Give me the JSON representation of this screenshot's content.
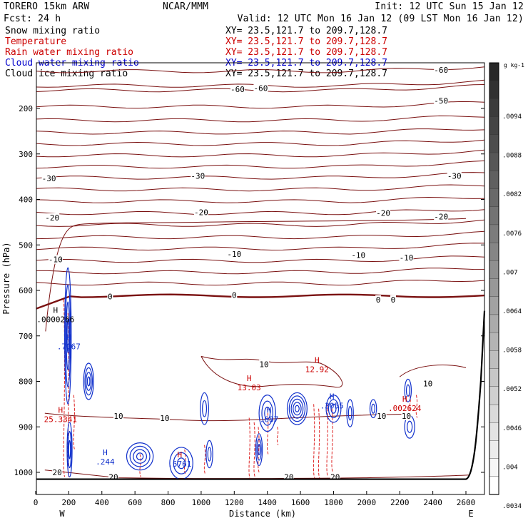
{
  "header": {
    "model": "TORERO  15km ARW",
    "center": "NCAR/MMM",
    "init": "Init: 12 UTC Sun 15 Jan 12",
    "fcst": "Fcst:   24 h",
    "valid": "Valid: 12 UTC Mon 16 Jan 12 (09 LST Mon 16 Jan 12)"
  },
  "fields": [
    {
      "label": "Snow mixing ratio",
      "color": "#000000",
      "xy": "XY=  23.5,121.7 to 209.7,128.7",
      "xy_color": "#000000"
    },
    {
      "label": "Temperature",
      "color": "#cc0000",
      "xy": "XY=  23.5,121.7 to 209.7,128.7",
      "xy_color": "#cc0000"
    },
    {
      "label": "Rain water mixing ratio",
      "color": "#cc0000",
      "xy": "XY=  23.5,121.7 to 209.7,128.7",
      "xy_color": "#cc0000"
    },
    {
      "label": "Cloud water mixing ratio",
      "color": "#0000cc",
      "xy": "XY=  23.5,121.7 to 209.7,128.7",
      "xy_color": "#0000cc"
    },
    {
      "label": "Cloud ice mixing ratio",
      "color": "#000000",
      "xy": "XY=  23.5,121.7 to 209.7,128.7",
      "xy_color": "#000000"
    }
  ],
  "colorbar": {
    "unit": "g kg-1",
    "labels": [
      ".0094",
      ".0088",
      ".0082",
      ".0076",
      ".007",
      ".0064",
      ".0058",
      ".0052",
      ".0046",
      ".004",
      ".0034"
    ]
  },
  "chart_data": {
    "type": "contour",
    "xlabel": "Distance (km)",
    "ylabel": "Pressure (hPa)",
    "xlim": [
      0,
      2800
    ],
    "ylim": [
      1050,
      100
    ],
    "x_ticks": [
      0,
      200,
      400,
      600,
      800,
      1000,
      1200,
      1400,
      1600,
      1800,
      2000,
      2200,
      2400,
      2600
    ],
    "y_ticks": [
      200,
      300,
      400,
      500,
      600,
      700,
      800,
      900,
      1000
    ],
    "x_end_labels": {
      "left": "W",
      "right": "E"
    },
    "colors": {
      "temperature": "#7a1010",
      "rain": "#dd2222",
      "cloud": "#1030cc",
      "terrain": "#000000"
    },
    "temperature_labels": [
      {
        "x": 2450,
        "p": 115,
        "text": "-60"
      },
      {
        "x": 1220,
        "p": 158,
        "text": "-60"
      },
      {
        "x": 1360,
        "p": 155,
        "text": "-60"
      },
      {
        "x": 2450,
        "p": 183,
        "text": "-50"
      },
      {
        "x": 80,
        "p": 354,
        "text": "-30"
      },
      {
        "x": 980,
        "p": 348,
        "text": "-30"
      },
      {
        "x": 2530,
        "p": 348,
        "text": "-30"
      },
      {
        "x": 100,
        "p": 440,
        "text": "-20"
      },
      {
        "x": 1000,
        "p": 428,
        "text": "-20"
      },
      {
        "x": 2100,
        "p": 430,
        "text": "-20"
      },
      {
        "x": 2450,
        "p": 438,
        "text": "-20"
      },
      {
        "x": 120,
        "p": 532,
        "text": "-10"
      },
      {
        "x": 1200,
        "p": 520,
        "text": "-10"
      },
      {
        "x": 1950,
        "p": 522,
        "text": "-10"
      },
      {
        "x": 2240,
        "p": 528,
        "text": "-10"
      },
      {
        "x": 450,
        "p": 613,
        "text": "0"
      },
      {
        "x": 1200,
        "p": 610,
        "text": "0"
      },
      {
        "x": 2070,
        "p": 620,
        "text": "0"
      },
      {
        "x": 2160,
        "p": 620,
        "text": "0"
      },
      {
        "x": 1380,
        "p": 762,
        "text": "10"
      },
      {
        "x": 2370,
        "p": 805,
        "text": "10"
      },
      {
        "x": 500,
        "p": 876,
        "text": "10"
      },
      {
        "x": 780,
        "p": 881,
        "text": "10"
      },
      {
        "x": 2090,
        "p": 876,
        "text": "10"
      },
      {
        "x": 2240,
        "p": 876,
        "text": "10"
      },
      {
        "x": 130,
        "p": 1000,
        "text": "20"
      },
      {
        "x": 470,
        "p": 1010,
        "text": "20"
      },
      {
        "x": 1530,
        "p": 1010,
        "text": "20"
      },
      {
        "x": 1810,
        "p": 1010,
        "text": "20"
      }
    ],
    "extrema": [
      {
        "x": 120,
        "p": 665,
        "text": ".0000266",
        "h_color": "#000000",
        "color": "#000000"
      },
      {
        "x": 200,
        "p": 725,
        "text": ".7067",
        "h_color": "#1030cc",
        "color": "#1030cc"
      },
      {
        "x": 150,
        "p": 885,
        "text": "25.3341",
        "h_color": "#cc0000",
        "color": "#cc0000"
      },
      {
        "x": 1290,
        "p": 815,
        "text": "13.03",
        "h_color": "#cc0000",
        "color": "#cc0000"
      },
      {
        "x": 1700,
        "p": 775,
        "text": "12.92",
        "h_color": "#cc0000",
        "color": "#cc0000"
      },
      {
        "x": 420,
        "p": 978,
        "text": ".244",
        "h_color": "#1030cc",
        "color": "#1030cc"
      },
      {
        "x": 1410,
        "p": 885,
        "text": ".687",
        "h_color": "#1030cc",
        "color": "#1030cc"
      },
      {
        "x": 1790,
        "p": 855,
        "text": ".3055",
        "h_color": "#1030cc",
        "color": "#1030cc"
      },
      {
        "x": 870,
        "p": 983,
        "text": ".5761",
        "h_color": "#cc0000",
        "color": "#1030cc"
      },
      {
        "x": 2230,
        "p": 860,
        "text": ".002624",
        "h_color": "#cc0000",
        "color": "#cc0000"
      }
    ]
  }
}
